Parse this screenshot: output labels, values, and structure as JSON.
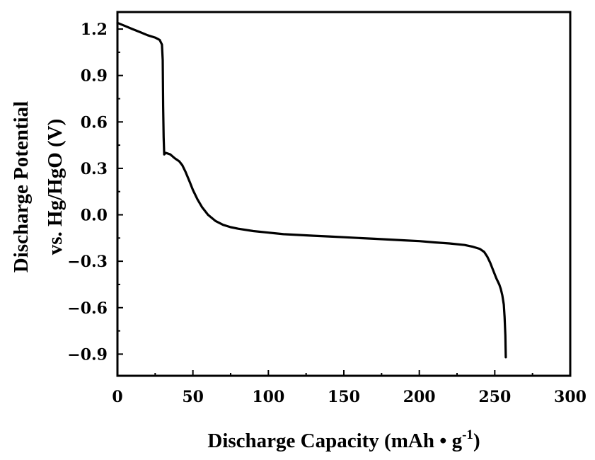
{
  "chart_data": {
    "type": "line",
    "title": "",
    "xlabel": "Discharge Capacity (mAh • g",
    "xlabel_superscript": "-1",
    "xlabel_suffix": ")",
    "ylabel_line1": "Discharge Potential",
    "ylabel_line2": "vs. Hg/HgO (V)",
    "xlim": [
      0,
      300
    ],
    "ylim": [
      -1.04,
      1.31
    ],
    "x_ticks": [
      0,
      50,
      100,
      150,
      200,
      250,
      300
    ],
    "x_tick_labels": [
      "0",
      "50",
      "100",
      "150",
      "200",
      "250",
      "300"
    ],
    "y_ticks": [
      1.2,
      0.9,
      0.6,
      0.3,
      0.0,
      -0.3,
      -0.6,
      -0.9
    ],
    "y_tick_labels": [
      "1.2",
      "0.9",
      "0.6",
      "0.3",
      "0.0",
      "−0.3",
      "−0.6",
      "−0.9"
    ],
    "grid": false,
    "legend": "none",
    "line_color": "#000000",
    "series": [
      {
        "x": [
          0,
          5,
          10,
          15,
          20,
          25,
          28,
          29.5,
          30,
          30.3,
          30.6,
          31,
          32,
          35,
          38,
          41,
          43,
          45,
          48,
          50,
          53,
          56,
          60,
          65,
          70,
          75,
          80,
          90,
          100,
          110,
          120,
          130,
          140,
          150,
          160,
          170,
          180,
          190,
          200,
          210,
          220,
          230,
          235,
          240,
          243,
          245,
          247,
          249,
          251,
          253,
          254,
          255,
          256,
          256.5,
          257,
          257.3
        ],
        "y": [
          1.24,
          1.22,
          1.2,
          1.18,
          1.16,
          1.145,
          1.13,
          1.1,
          1.0,
          0.7,
          0.5,
          0.39,
          0.4,
          0.39,
          0.365,
          0.345,
          0.32,
          0.28,
          0.21,
          0.16,
          0.1,
          0.05,
          0.0,
          -0.04,
          -0.065,
          -0.08,
          -0.09,
          -0.105,
          -0.115,
          -0.125,
          -0.13,
          -0.135,
          -0.14,
          -0.145,
          -0.15,
          -0.155,
          -0.16,
          -0.165,
          -0.17,
          -0.178,
          -0.185,
          -0.195,
          -0.205,
          -0.22,
          -0.24,
          -0.27,
          -0.31,
          -0.36,
          -0.41,
          -0.45,
          -0.48,
          -0.52,
          -0.58,
          -0.66,
          -0.78,
          -0.92
        ]
      }
    ]
  }
}
